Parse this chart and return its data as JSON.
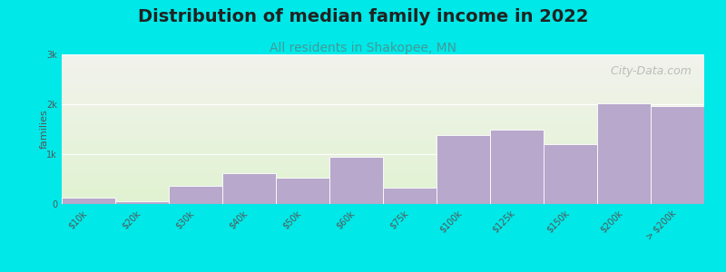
{
  "title": "Distribution of median family income in 2022",
  "subtitle": "All residents in Shakopee, MN",
  "categories": [
    "$10k",
    "$20k",
    "$30k",
    "$40k",
    "$50k",
    "$60k",
    "$75k",
    "$100k",
    "$125k",
    "$150k",
    "$200k",
    "> $200k"
  ],
  "values": [
    120,
    60,
    370,
    620,
    530,
    950,
    330,
    1380,
    1490,
    1200,
    2020,
    1960
  ],
  "bar_color": "#b8a8cc",
  "bar_edge_color": "#ffffff",
  "background_color": "#00e8e8",
  "plot_bg_top": "#f2f2ee",
  "plot_bg_bottom": "#e2f0d8",
  "ylabel": "families",
  "ylim": [
    0,
    3000
  ],
  "yticks": [
    0,
    1000,
    2000,
    3000
  ],
  "ytick_labels": [
    "0",
    "1k",
    "2k",
    "3k"
  ],
  "watermark": "  City-Data.com",
  "title_fontsize": 14,
  "subtitle_fontsize": 10,
  "ylabel_fontsize": 8,
  "tick_fontsize": 7,
  "watermark_fontsize": 9
}
